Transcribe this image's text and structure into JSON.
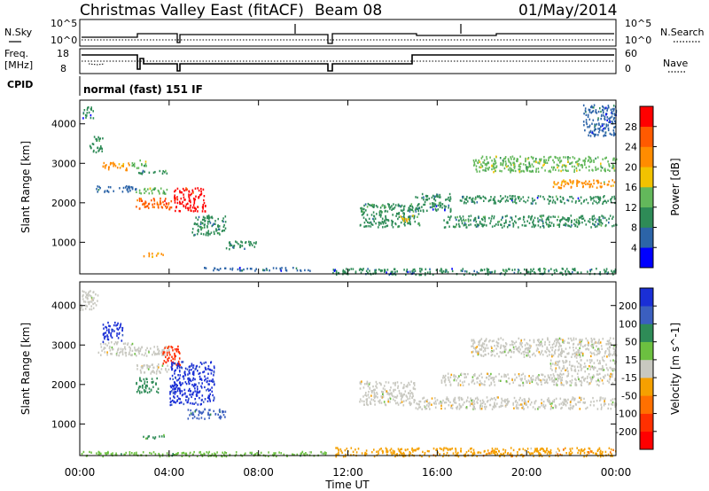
{
  "header": {
    "title": "Christmas Valley East (fitACF)",
    "beam": "Beam 08",
    "date": "01/May/2014"
  },
  "strip_labels": {
    "nsky": "N.Sky",
    "nsearch": "N.Search",
    "freq_line1": "Freq.",
    "freq_line2": "[MHz]",
    "nave": "Nave",
    "cpid": "CPID",
    "cpid_value": "normal (fast) 151 IF",
    "noise_ticks": [
      "10^5",
      "10^0"
    ],
    "freq_ticks": [
      "18",
      "8"
    ],
    "nave_ticks": [
      "60",
      "0"
    ]
  },
  "chart_data": [
    {
      "type": "heatmap",
      "name": "power",
      "ylabel": "Slant Range [km]",
      "xlabel": "Time UT",
      "x_ticks": [
        "00:00",
        "04:00",
        "08:00",
        "12:00",
        "16:00",
        "20:00",
        "00:00"
      ],
      "y_ticks": [
        "1000",
        "2000",
        "3000",
        "4000"
      ],
      "ylim": [
        200,
        4600
      ],
      "xlim_hours": [
        0,
        24
      ],
      "colorbar": {
        "label": "Power [dB]",
        "ticks": [
          "4",
          "8",
          "12",
          "16",
          "20",
          "24",
          "28"
        ],
        "colors": [
          "#0000ff",
          "#2c64a8",
          "#2e8b57",
          "#63b85b",
          "#f2c200",
          "#ff8c00",
          "#ff5a00",
          "#ff0000"
        ]
      },
      "bands": [
        {
          "t0": 0.1,
          "t1": 0.6,
          "r0": 4150,
          "r1": 4450,
          "value": 8
        },
        {
          "t0": 0.4,
          "t1": 1.0,
          "r0": 3300,
          "r1": 3700,
          "value": 10
        },
        {
          "t0": 1.0,
          "t1": 2.2,
          "r0": 2850,
          "r1": 3050,
          "value": 20
        },
        {
          "t0": 2.3,
          "t1": 3.0,
          "r0": 2900,
          "r1": 3100,
          "value": 14
        },
        {
          "t0": 0.6,
          "t1": 2.5,
          "r0": 2300,
          "r1": 2450,
          "value": 6
        },
        {
          "t0": 2.5,
          "t1": 4.1,
          "r0": 1850,
          "r1": 2150,
          "value": 26
        },
        {
          "t0": 2.5,
          "t1": 4.0,
          "r0": 2250,
          "r1": 2400,
          "value": 12
        },
        {
          "t0": 2.6,
          "t1": 3.9,
          "r0": 2750,
          "r1": 2850,
          "value": 8
        },
        {
          "t0": 4.2,
          "t1": 5.6,
          "r0": 1800,
          "r1": 2400,
          "value": 28
        },
        {
          "t0": 5.0,
          "t1": 6.5,
          "r0": 1200,
          "r1": 1700,
          "value": 10
        },
        {
          "t0": 6.5,
          "t1": 7.9,
          "r0": 850,
          "r1": 1050,
          "value": 8
        },
        {
          "t0": 2.8,
          "t1": 3.8,
          "r0": 650,
          "r1": 750,
          "value": 22
        },
        {
          "t0": 5.5,
          "t1": 10.5,
          "r0": 300,
          "r1": 380,
          "value": 6
        },
        {
          "t0": 11.3,
          "t1": 24.0,
          "r0": 200,
          "r1": 360,
          "value": 8
        },
        {
          "t0": 12.5,
          "t1": 15.2,
          "r0": 1400,
          "r1": 2000,
          "value": 10
        },
        {
          "t0": 14.3,
          "t1": 14.9,
          "r0": 1550,
          "r1": 1700,
          "value": 18
        },
        {
          "t0": 15.0,
          "t1": 16.6,
          "r0": 1800,
          "r1": 2250,
          "value": 8
        },
        {
          "t0": 16.2,
          "t1": 24.0,
          "r0": 1400,
          "r1": 1700,
          "value": 10
        },
        {
          "t0": 17.0,
          "t1": 24.0,
          "r0": 2000,
          "r1": 2200,
          "value": 8
        },
        {
          "t0": 17.5,
          "t1": 24.0,
          "r0": 2800,
          "r1": 3200,
          "value": 14
        },
        {
          "t0": 21.0,
          "t1": 24.0,
          "r0": 2400,
          "r1": 2600,
          "value": 20
        },
        {
          "t0": 22.5,
          "t1": 24.0,
          "r0": 3700,
          "r1": 4500,
          "value": 6
        }
      ]
    },
    {
      "type": "heatmap",
      "name": "velocity",
      "ylabel": "Slant Range [km]",
      "xlabel": "Time UT",
      "x_ticks": [
        "00:00",
        "04:00",
        "08:00",
        "12:00",
        "16:00",
        "20:00",
        "00:00"
      ],
      "y_ticks": [
        "1000",
        "2000",
        "3000",
        "4000"
      ],
      "ylim": [
        200,
        4600
      ],
      "xlim_hours": [
        0,
        24
      ],
      "colorbar": {
        "label": "Velocity [m s^-1]",
        "ticks": [
          "200",
          "100",
          "50",
          "15",
          "-15",
          "-50",
          "-100",
          "-200"
        ],
        "colors": [
          "#1a2fd6",
          "#3b5fbf",
          "#2e8b57",
          "#6cc040",
          "#c8c8c0",
          "#f5a000",
          "#ff7000",
          "#ff3000",
          "#ff0000"
        ]
      },
      "bands": [
        {
          "t0": 0.0,
          "t1": 0.8,
          "r0": 3900,
          "r1": 4400,
          "value": 0
        },
        {
          "t0": 0.8,
          "t1": 2.5,
          "r0": 2750,
          "r1": 3100,
          "value": 0
        },
        {
          "t0": 1.0,
          "t1": 1.9,
          "r0": 3100,
          "r1": 3600,
          "value": 200
        },
        {
          "t0": 2.5,
          "t1": 4.0,
          "r0": 2750,
          "r1": 3000,
          "value": 0
        },
        {
          "t0": 2.5,
          "t1": 4.0,
          "r0": 2300,
          "r1": 2550,
          "value": 0
        },
        {
          "t0": 2.5,
          "t1": 3.5,
          "r0": 1800,
          "r1": 2200,
          "value": 60
        },
        {
          "t0": 3.7,
          "t1": 4.5,
          "r0": 2500,
          "r1": 3000,
          "value": -200
        },
        {
          "t0": 4.0,
          "t1": 6.0,
          "r0": 1500,
          "r1": 2600,
          "value": 200
        },
        {
          "t0": 4.8,
          "t1": 6.5,
          "r0": 1150,
          "r1": 1400,
          "value": 100
        },
        {
          "t0": 2.8,
          "t1": 3.8,
          "r0": 650,
          "r1": 750,
          "value": 50
        },
        {
          "t0": 0.0,
          "t1": 11.0,
          "r0": 200,
          "r1": 320,
          "value": 30
        },
        {
          "t0": 11.3,
          "t1": 24.0,
          "r0": 200,
          "r1": 420,
          "value": -40
        },
        {
          "t0": 12.5,
          "t1": 15.0,
          "r0": 1500,
          "r1": 2100,
          "value": 0
        },
        {
          "t0": 15.0,
          "t1": 24.0,
          "r0": 1400,
          "r1": 1700,
          "value": 0
        },
        {
          "t0": 16.0,
          "t1": 24.0,
          "r0": 2000,
          "r1": 2300,
          "value": 0
        },
        {
          "t0": 17.5,
          "t1": 24.0,
          "r0": 2700,
          "r1": 3200,
          "value": 0
        },
        {
          "t0": 21.0,
          "t1": 24.0,
          "r0": 2350,
          "r1": 2650,
          "value": 0
        }
      ]
    }
  ]
}
